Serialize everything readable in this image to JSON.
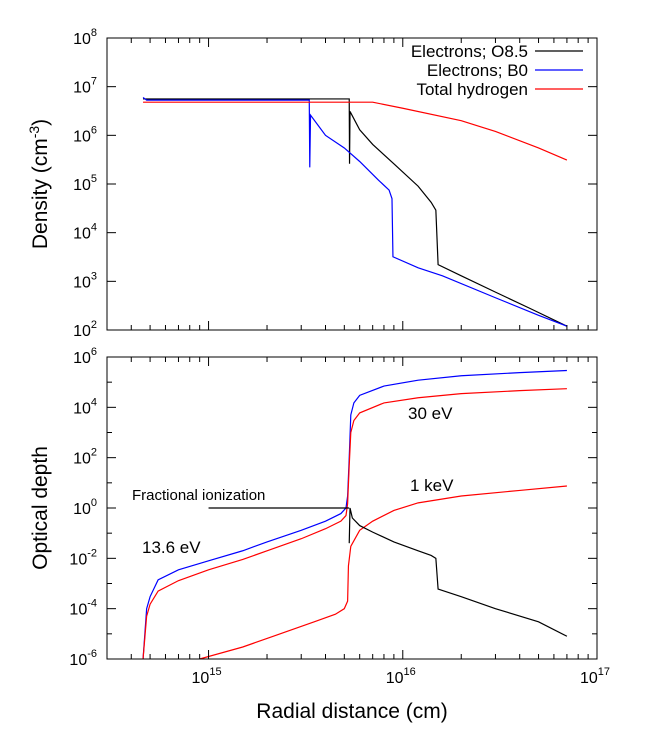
{
  "chart_data": [
    {
      "type": "line",
      "ylabel": "Density (cm",
      "ylabel_exp": "-3",
      "ylabel_close": ")",
      "xscale": "log",
      "yscale": "log",
      "xlim": [
        300000000000000.0,
        1e+17
      ],
      "ylim": [
        100,
        100000000
      ],
      "ytick_exponents": [
        "2",
        "3",
        "4",
        "5",
        "6",
        "7",
        "8"
      ],
      "legend_location": "top-right",
      "series": [
        {
          "name": "Electrons; O8.5",
          "color": "#000000",
          "points": [
            [
              460000000000000.0,
              5600000.0
            ],
            [
              5300000000000000.0,
              5600000.0
            ],
            [
              5320000000000000.0,
              260000.0
            ],
            [
              5350000000000000.0,
              3100000.0
            ],
            [
              6000000000000000.0,
              1300000.0
            ],
            [
              7000000000000000.0,
              650000.0
            ],
            [
              9000000000000000.0,
              260000.0
            ],
            [
              1.2e+16,
              90000.0
            ],
            [
              1.4e+16,
              42000.0
            ],
            [
              1.48e+16,
              29000.0
            ],
            [
              1.52e+16,
              2200.0
            ],
            [
              2e+16,
              1300.0
            ],
            [
              3e+16,
              600.0
            ],
            [
              4.5e+16,
              280.0
            ],
            [
              7e+16,
              120.0
            ]
          ]
        },
        {
          "name": "Electrons; B0",
          "color": "#0000ff",
          "points": [
            [
              460000000000000.0,
              6000000.0
            ],
            [
              480000000000000.0,
              5300000.0
            ],
            [
              3300000000000000.0,
              5300000.0
            ],
            [
              3320000000000000.0,
              220000.0
            ],
            [
              3350000000000000.0,
              2600000.0
            ],
            [
              4000000000000000.0,
              1000000.0
            ],
            [
              5000000000000000.0,
              550000.0
            ],
            [
              6000000000000000.0,
              290000.0
            ],
            [
              7500000000000000.0,
              120000.0
            ],
            [
              8500000000000000.0,
              75000.0
            ],
            [
              8800000000000000.0,
              50000.0
            ],
            [
              8900000000000000.0,
              3200.0
            ],
            [
              1.2e+16,
              1900.0
            ],
            [
              1.6e+16,
              1300.0
            ],
            [
              3e+16,
              460.0
            ],
            [
              5e+16,
              200.0
            ],
            [
              7e+16,
              120.0
            ]
          ]
        },
        {
          "name": "Total hydrogen",
          "color": "#ff0000",
          "points": [
            [
              460000000000000.0,
              4800000.0
            ],
            [
              7000000000000000.0,
              4800000.0
            ],
            [
              1e+16,
              3600000.0
            ],
            [
              2e+16,
              2000000.0
            ],
            [
              3e+16,
              1200000.0
            ],
            [
              5e+16,
              550000.0
            ],
            [
              7e+16,
              310000.0
            ]
          ]
        }
      ]
    },
    {
      "type": "line",
      "xlabel": "Radial distance (cm)",
      "ylabel": "Optical depth",
      "xscale": "log",
      "yscale": "log",
      "xlim": [
        300000000000000.0,
        1e+17
      ],
      "ylim": [
        1e-06,
        1000000
      ],
      "xtick_exponents": [
        "15",
        "16",
        "17"
      ],
      "ytick_exponents": [
        "-6",
        "-4",
        "-2",
        "0",
        "2",
        "4",
        "6"
      ],
      "annotations": [
        "30 eV",
        "1 keV",
        "13.6 eV",
        "Fractional ionization"
      ],
      "series": [
        {
          "color": "#0000ff",
          "points": [
            [
              460000000000000.0,
              1e-06
            ],
            [
              480000000000000.0,
              0.0001
            ],
            [
              500000000000000.0,
              0.0003
            ],
            [
              550000000000000.0,
              0.0014
            ],
            [
              700000000000000.0,
              0.0035
            ],
            [
              1000000000000000.0,
              0.008
            ],
            [
              1500000000000000.0,
              0.02
            ],
            [
              2000000000000000.0,
              0.045
            ],
            [
              3000000000000000.0,
              0.13
            ],
            [
              4000000000000000.0,
              0.3
            ],
            [
              4800000000000000.0,
              0.6
            ],
            [
              5100000000000000.0,
              1.0
            ],
            [
              5200000000000000.0,
              3.0
            ],
            [
              5300000000000000.0,
              100.0
            ],
            [
              5400000000000000.0,
              5000.0
            ],
            [
              5600000000000000.0,
              15000.0
            ],
            [
              6000000000000000.0,
              30000.0
            ],
            [
              8000000000000000.0,
              70000.0
            ],
            [
              1.2e+16,
              120000.0
            ],
            [
              2e+16,
              180000.0
            ],
            [
              4e+16,
              240000.0
            ],
            [
              7e+16,
              290000.0
            ]
          ]
        },
        {
          "color": "#ff0000",
          "points": [
            [
              460000000000000.0,
              1e-06
            ],
            [
              480000000000000.0,
              5e-05
            ],
            [
              500000000000000.0,
              0.00015
            ],
            [
              550000000000000.0,
              0.0005
            ],
            [
              700000000000000.0,
              0.0013
            ],
            [
              1000000000000000.0,
              0.0035
            ],
            [
              1500000000000000.0,
              0.009
            ],
            [
              2000000000000000.0,
              0.02
            ],
            [
              3000000000000000.0,
              0.06
            ],
            [
              4000000000000000.0,
              0.15
            ],
            [
              4800000000000000.0,
              0.3
            ],
            [
              5100000000000000.0,
              0.5
            ],
            [
              5200000000000000.0,
              1.5
            ],
            [
              5300000000000000.0,
              50.0
            ],
            [
              5400000000000000.0,
              1000.0
            ],
            [
              5600000000000000.0,
              3000.0
            ],
            [
              6000000000000000.0,
              6000.0
            ],
            [
              8000000000000000.0,
              15000.0
            ],
            [
              1.2e+16,
              24000.0
            ],
            [
              2e+16,
              35000.0
            ],
            [
              4e+16,
              46000.0
            ],
            [
              7e+16,
              55000.0
            ]
          ]
        },
        {
          "color": "#ff0000",
          "points": [
            [
              900000000000000.0,
              1e-06
            ],
            [
              1500000000000000.0,
              3e-06
            ],
            [
              2500000000000000.0,
              1.2e-05
            ],
            [
              3500000000000000.0,
              3e-05
            ],
            [
              4500000000000000.0,
              6e-05
            ],
            [
              5000000000000000.0,
              0.0001
            ],
            [
              5200000000000000.0,
              0.0002
            ],
            [
              5250000000000000.0,
              0.005
            ],
            [
              5400000000000000.0,
              0.03
            ],
            [
              6000000000000000.0,
              0.13
            ],
            [
              7000000000000000.0,
              0.3
            ],
            [
              9000000000000000.0,
              0.8
            ],
            [
              1.2e+16,
              1.6
            ],
            [
              2e+16,
              3.0
            ],
            [
              4e+16,
              5.0
            ],
            [
              7e+16,
              7.5
            ]
          ]
        },
        {
          "color": "#000000",
          "points": [
            [
              5300000000000000.0,
              0.04
            ],
            [
              5350000000000000.0,
              1.0
            ],
            [
              5500000000000000.0,
              0.4
            ],
            [
              6000000000000000.0,
              0.2
            ],
            [
              7000000000000000.0,
              0.11
            ],
            [
              9000000000000000.0,
              0.045
            ],
            [
              1.2e+16,
              0.02
            ],
            [
              1.4e+16,
              0.013
            ],
            [
              1.48e+16,
              0.01
            ],
            [
              1.52e+16,
              0.0006
            ],
            [
              2e+16,
              0.0003
            ],
            [
              3e+16,
              0.0001
            ],
            [
              5e+16,
              3e-05
            ],
            [
              7e+16,
              8e-06
            ]
          ]
        },
        {
          "color": "#000000",
          "points": [
            [
              1000000000000000.0,
              1.0
            ],
            [
              5300000000000000.0,
              1.0
            ]
          ]
        }
      ]
    }
  ]
}
